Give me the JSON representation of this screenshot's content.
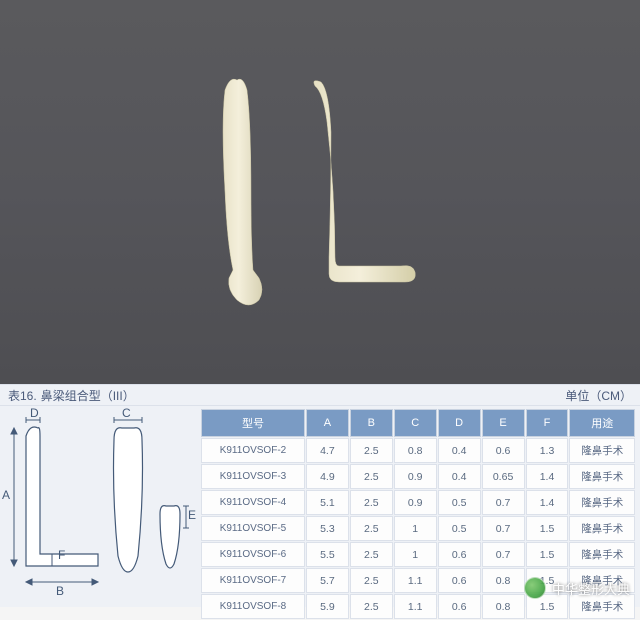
{
  "photo": {
    "background_gradient": [
      "#5a5a5d",
      "#55555a",
      "#4e4e52"
    ],
    "implant_color": "#f2edd8",
    "implant_shadow": "#d8d2b8"
  },
  "caption": {
    "prefix": "表16.",
    "title": "鼻梁组合型（III）",
    "unit_label": "单位（CM）"
  },
  "diagram": {
    "labels": {
      "A": "A",
      "B": "B",
      "C": "C",
      "D": "D",
      "E": "E",
      "F": "F"
    },
    "stroke": "#445a78",
    "fill": "#ffffff"
  },
  "table": {
    "header_bg": "#7a9bc4",
    "header_fg": "#ffffff",
    "cell_bg": "#fdfdfd",
    "cell_fg": "#5a6a80",
    "border": "#dce1ea",
    "columns": [
      "型号",
      "A",
      "B",
      "C",
      "D",
      "E",
      "F",
      "用途"
    ],
    "rows": [
      [
        "K911OVSOF-2",
        "4.7",
        "2.5",
        "0.8",
        "0.4",
        "0.6",
        "1.3",
        "隆鼻手术"
      ],
      [
        "K911OVSOF-3",
        "4.9",
        "2.5",
        "0.9",
        "0.4",
        "0.65",
        "1.4",
        "隆鼻手术"
      ],
      [
        "K911OVSOF-4",
        "5.1",
        "2.5",
        "0.9",
        "0.5",
        "0.7",
        "1.4",
        "隆鼻手术"
      ],
      [
        "K911OVSOF-5",
        "5.3",
        "2.5",
        "1",
        "0.5",
        "0.7",
        "1.5",
        "隆鼻手术"
      ],
      [
        "K911OVSOF-6",
        "5.5",
        "2.5",
        "1",
        "0.6",
        "0.7",
        "1.5",
        "隆鼻手术"
      ],
      [
        "K911OVSOF-7",
        "5.7",
        "2.5",
        "1.1",
        "0.6",
        "0.8",
        "1.5",
        "隆鼻手术"
      ],
      [
        "K911OVSOF-8",
        "5.9",
        "2.5",
        "1.1",
        "0.6",
        "0.8",
        "1.5",
        "隆鼻手术"
      ]
    ]
  },
  "watermark": {
    "text": "中华整形大典"
  }
}
